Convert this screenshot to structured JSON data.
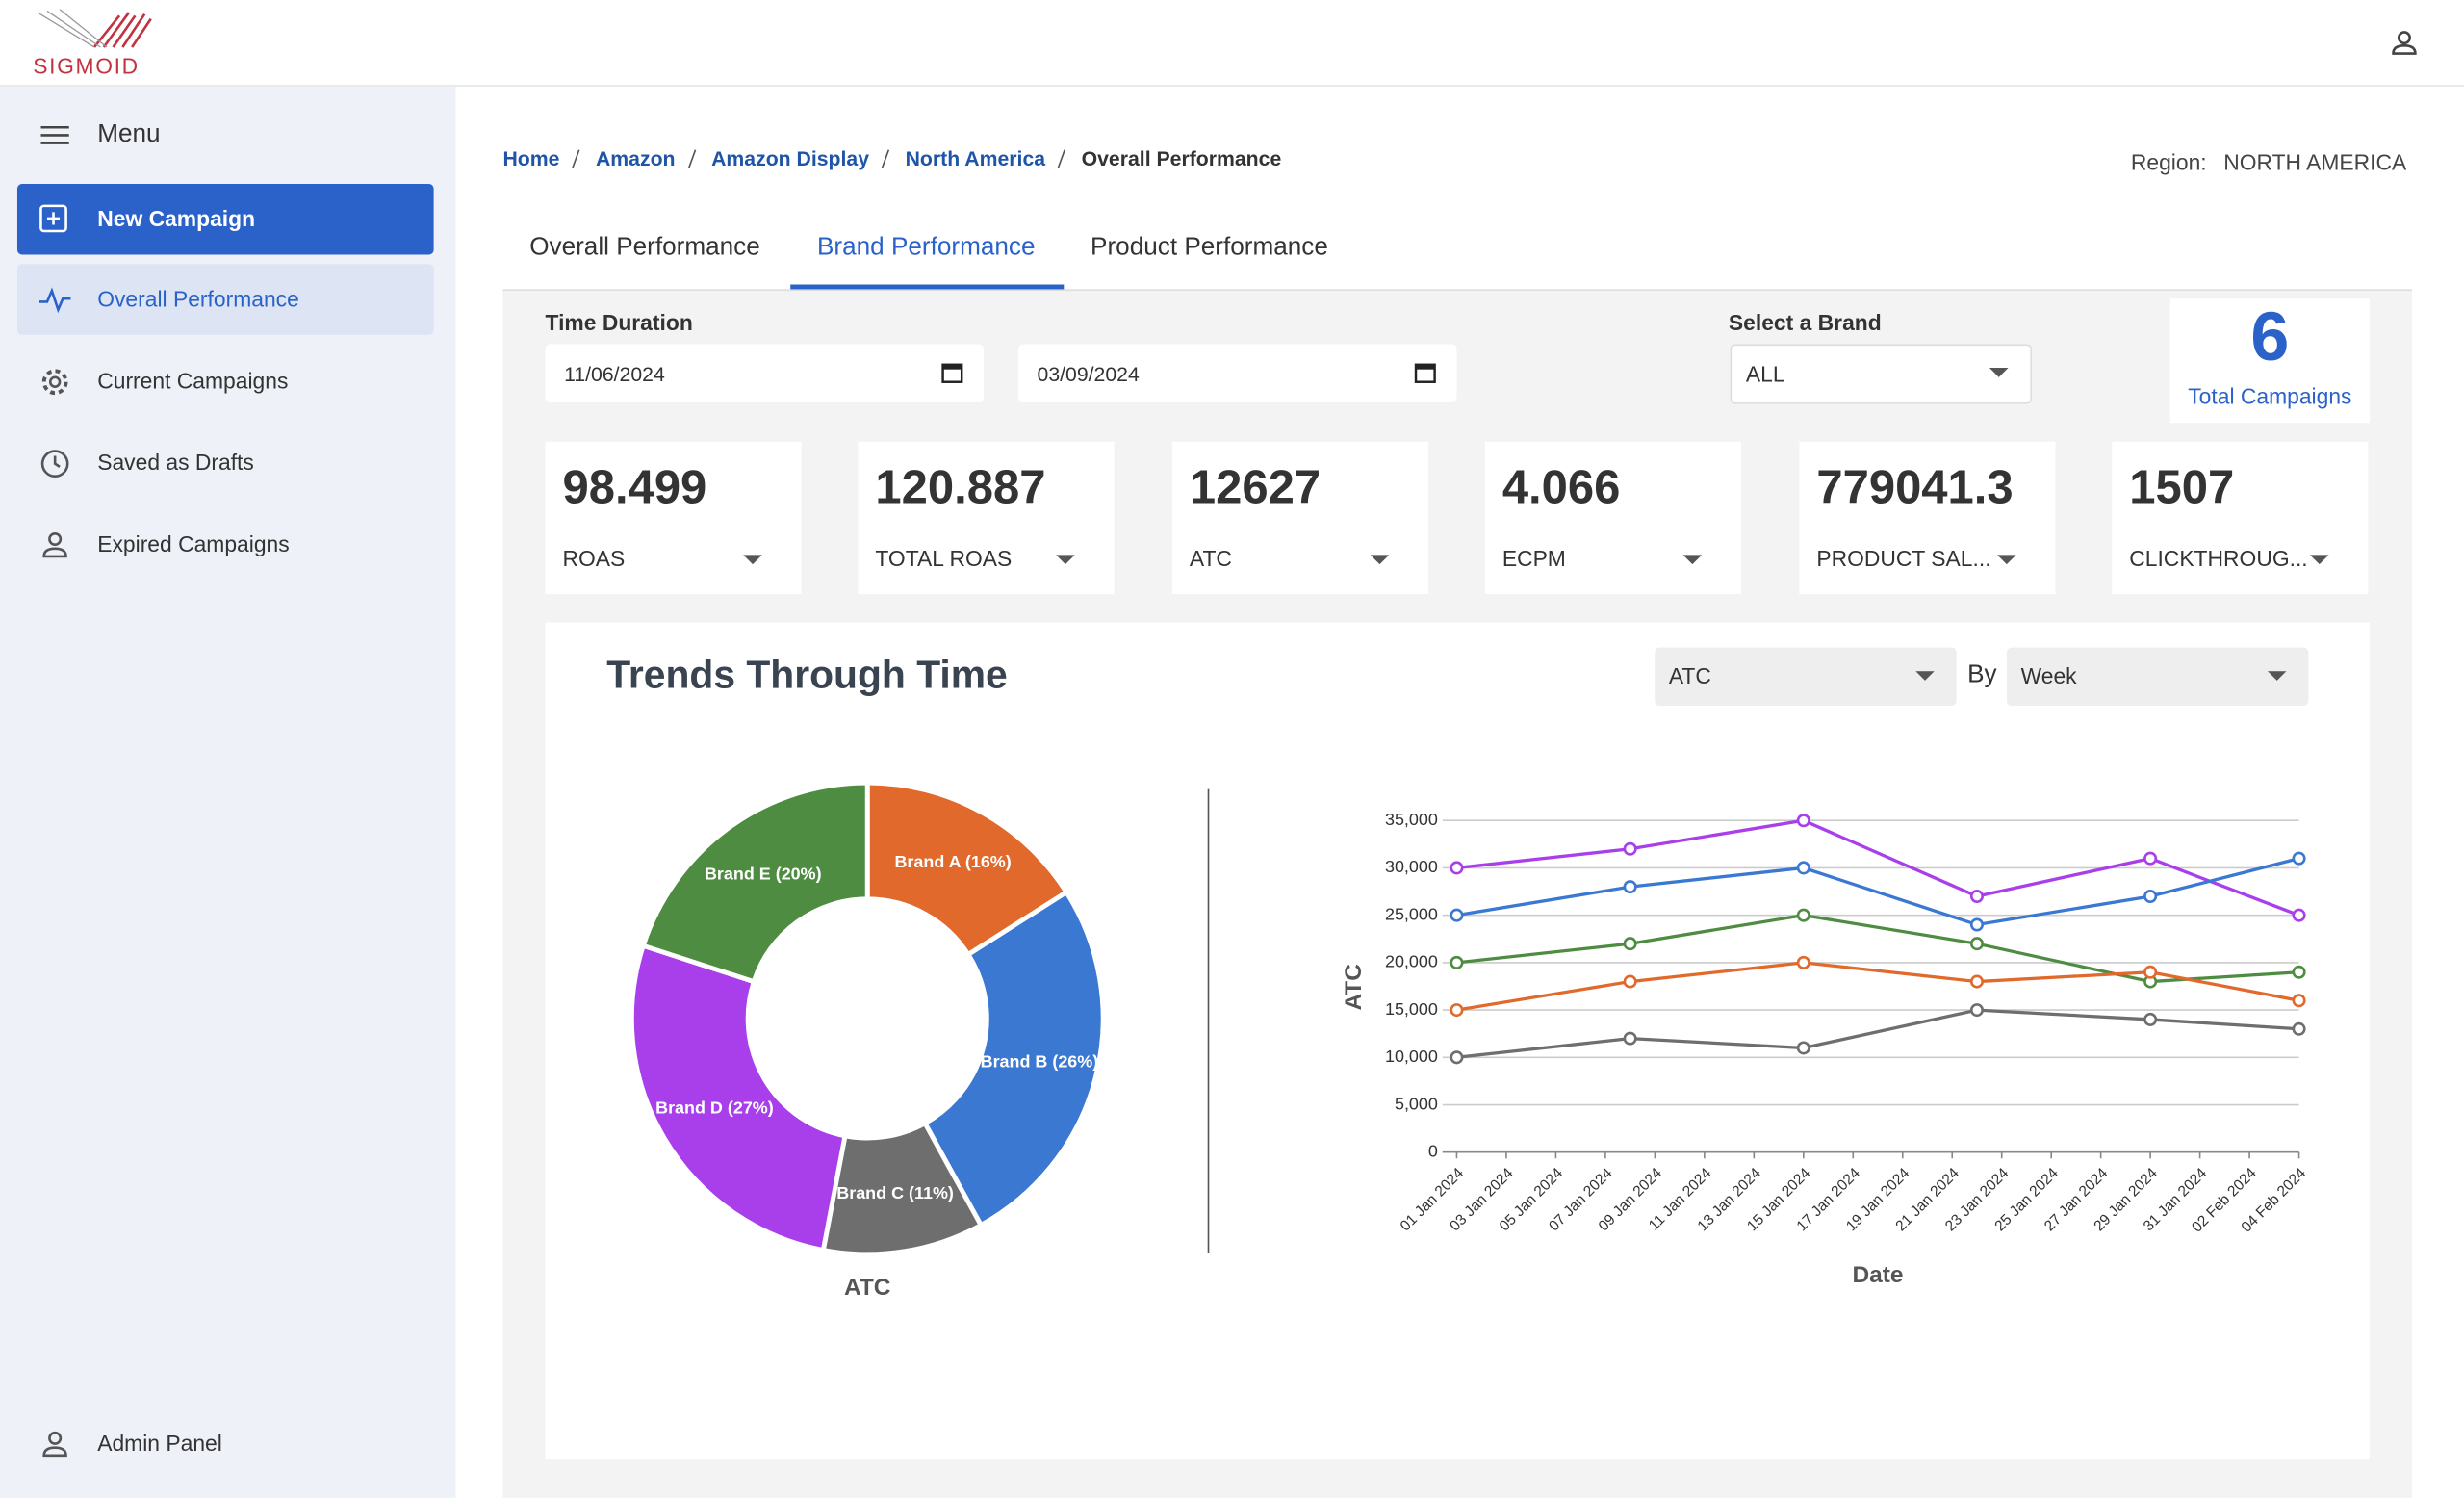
{
  "header": {
    "logo": "SIGMOID"
  },
  "sidebar": {
    "menu": "Menu",
    "new_campaign": "New Campaign",
    "items": [
      "Overall Performance",
      "Current Campaigns",
      "Saved as Drafts",
      "Expired Campaigns"
    ],
    "admin": "Admin Panel"
  },
  "breadcrumb": [
    "Home",
    "Amazon",
    "Amazon Display",
    "North America",
    "Overall Performance"
  ],
  "region": {
    "label": "Region:",
    "value": "NORTH AMERICA"
  },
  "tabs": [
    "Overall Performance",
    "Brand Performance",
    "Product Performance"
  ],
  "filters": {
    "time_label": "Time Duration",
    "start": "11/06/2024",
    "end": "03/09/2024",
    "brand_label": "Select a Brand",
    "brand": "ALL"
  },
  "total": {
    "value": 6,
    "label": "Total Campaigns"
  },
  "kpis": [
    {
      "value": 98.499,
      "label": "ROAS"
    },
    {
      "value": 120.887,
      "label": "TOTAL ROAS"
    },
    {
      "value": 12627,
      "label": "ATC"
    },
    {
      "value": 4.066,
      "label": "ECPM"
    },
    {
      "value": 779041.3,
      "label": "PRODUCT SAL..."
    },
    {
      "value": 1507,
      "label": "CLICKTHROUG..."
    }
  ],
  "trends": {
    "title": "Trends Through Time",
    "metric": "ATC",
    "by": "By",
    "period": "Week"
  },
  "chart_data": [
    {
      "type": "pie",
      "title": "ATC",
      "donut": true,
      "values": [
        16,
        26,
        11,
        27,
        20
      ],
      "value_labels": [
        "Brand A (16%)",
        "Brand B (26%)",
        "Brand C (11%)",
        "Brand D (27%)",
        "Brand E (20%)"
      ],
      "colors": [
        "#e0692b",
        "#3a78d2",
        "#6e6e6e",
        "#a83fea",
        "#4e8c42"
      ]
    },
    {
      "type": "line",
      "xlabel": "Date",
      "ylabel": "ATC",
      "grid": true,
      "x": [
        "01 Jan 2024",
        "08 Jan 2024",
        "15 Jan 2024",
        "22 Jan 2024",
        "29 Jan 2024",
        "04 Feb 2024"
      ],
      "xticks": [
        "01 Jan 2024",
        "03 Jan 2024",
        "05 Jan 2024",
        "07 Jan 2024",
        "09 Jan 2024",
        "11 Jan 2024",
        "13 Jan 2024",
        "15 Jan 2024",
        "17 Jan 2024",
        "19 Jan 2024",
        "21 Jan 2024",
        "23 Jan 2024",
        "25 Jan 2024",
        "27 Jan 2024",
        "29 Jan 2024",
        "31 Jan 2024",
        "02 Feb 2024",
        "04 Feb 2024"
      ],
      "ylim": [
        0,
        35000
      ],
      "yticks": [
        0,
        {
          "value": 5000,
          "label": "5,000"
        },
        {
          "value": 10000,
          "label": "10,000"
        },
        {
          "value": 15000,
          "label": "15,000"
        },
        {
          "value": 20000,
          "label": "20,000"
        },
        {
          "value": 25000,
          "label": "25,000"
        },
        {
          "value": 30000,
          "label": "30,000"
        },
        {
          "value": 35000,
          "label": "35,000"
        }
      ],
      "series": [
        {
          "color": "#a83fea",
          "values": [
            30000,
            32000,
            35000,
            27000,
            31000,
            25000
          ]
        },
        {
          "color": "#3a78d2",
          "values": [
            25000,
            28000,
            30000,
            24000,
            27000,
            31000
          ]
        },
        {
          "color": "#4e8c42",
          "values": [
            20000,
            22000,
            25000,
            22000,
            18000,
            19000
          ]
        },
        {
          "color": "#e0692b",
          "values": [
            15000,
            18000,
            20000,
            18000,
            19000,
            16000
          ]
        },
        {
          "color": "#6e6e6e",
          "values": [
            10000,
            12000,
            11000,
            15000,
            14000,
            13000
          ]
        }
      ]
    }
  ]
}
